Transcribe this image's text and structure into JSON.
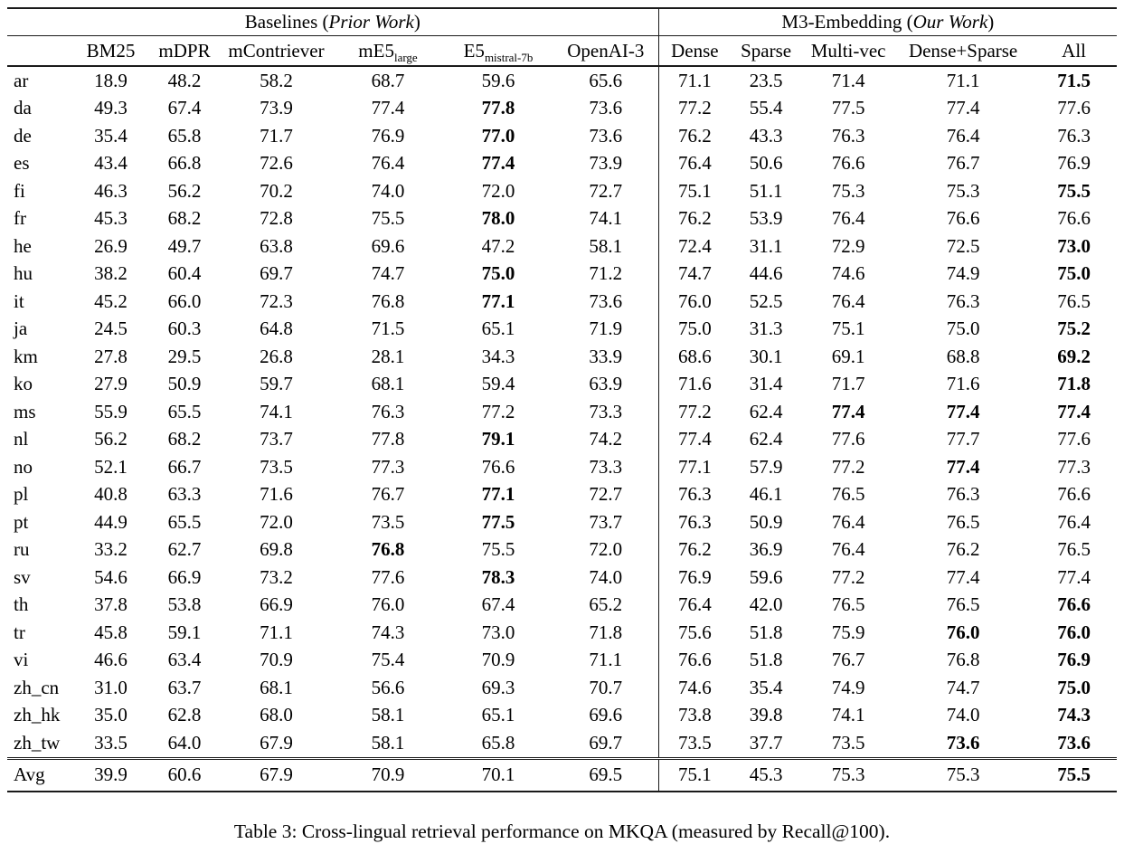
{
  "table": {
    "groups": [
      {
        "prefix": "Baselines (",
        "emph": "Prior Work",
        "suffix": ")"
      },
      {
        "prefix": "M3-Embedding (",
        "emph": "Our Work",
        "suffix": ")"
      }
    ],
    "columns": [
      {
        "text": "BM25"
      },
      {
        "text": "mDPR"
      },
      {
        "text": "mContriever"
      },
      {
        "text": "mE5",
        "sub": "large"
      },
      {
        "text": "E5",
        "sub": "mistral-7b"
      },
      {
        "text": "OpenAI-3"
      },
      {
        "text": "Dense"
      },
      {
        "text": "Sparse"
      },
      {
        "text": "Multi-vec"
      },
      {
        "text": "Dense+Sparse"
      },
      {
        "text": "All"
      }
    ],
    "rows": [
      {
        "lang": "ar",
        "values": [
          "18.9",
          "48.2",
          "58.2",
          "68.7",
          "59.6",
          "65.6",
          "71.1",
          "23.5",
          "71.4",
          "71.1",
          "71.5"
        ],
        "bold": [
          10
        ]
      },
      {
        "lang": "da",
        "values": [
          "49.3",
          "67.4",
          "73.9",
          "77.4",
          "77.8",
          "73.6",
          "77.2",
          "55.4",
          "77.5",
          "77.4",
          "77.6"
        ],
        "bold": [
          4
        ]
      },
      {
        "lang": "de",
        "values": [
          "35.4",
          "65.8",
          "71.7",
          "76.9",
          "77.0",
          "73.6",
          "76.2",
          "43.3",
          "76.3",
          "76.4",
          "76.3"
        ],
        "bold": [
          4
        ]
      },
      {
        "lang": "es",
        "values": [
          "43.4",
          "66.8",
          "72.6",
          "76.4",
          "77.4",
          "73.9",
          "76.4",
          "50.6",
          "76.6",
          "76.7",
          "76.9"
        ],
        "bold": [
          4
        ]
      },
      {
        "lang": "fi",
        "values": [
          "46.3",
          "56.2",
          "70.2",
          "74.0",
          "72.0",
          "72.7",
          "75.1",
          "51.1",
          "75.3",
          "75.3",
          "75.5"
        ],
        "bold": [
          10
        ]
      },
      {
        "lang": "fr",
        "values": [
          "45.3",
          "68.2",
          "72.8",
          "75.5",
          "78.0",
          "74.1",
          "76.2",
          "53.9",
          "76.4",
          "76.6",
          "76.6"
        ],
        "bold": [
          4
        ]
      },
      {
        "lang": "he",
        "values": [
          "26.9",
          "49.7",
          "63.8",
          "69.6",
          "47.2",
          "58.1",
          "72.4",
          "31.1",
          "72.9",
          "72.5",
          "73.0"
        ],
        "bold": [
          10
        ]
      },
      {
        "lang": "hu",
        "values": [
          "38.2",
          "60.4",
          "69.7",
          "74.7",
          "75.0",
          "71.2",
          "74.7",
          "44.6",
          "74.6",
          "74.9",
          "75.0"
        ],
        "bold": [
          4,
          10
        ]
      },
      {
        "lang": "it",
        "values": [
          "45.2",
          "66.0",
          "72.3",
          "76.8",
          "77.1",
          "73.6",
          "76.0",
          "52.5",
          "76.4",
          "76.3",
          "76.5"
        ],
        "bold": [
          4
        ]
      },
      {
        "lang": "ja",
        "values": [
          "24.5",
          "60.3",
          "64.8",
          "71.5",
          "65.1",
          "71.9",
          "75.0",
          "31.3",
          "75.1",
          "75.0",
          "75.2"
        ],
        "bold": [
          10
        ]
      },
      {
        "lang": "km",
        "values": [
          "27.8",
          "29.5",
          "26.8",
          "28.1",
          "34.3",
          "33.9",
          "68.6",
          "30.1",
          "69.1",
          "68.8",
          "69.2"
        ],
        "bold": [
          10
        ]
      },
      {
        "lang": "ko",
        "values": [
          "27.9",
          "50.9",
          "59.7",
          "68.1",
          "59.4",
          "63.9",
          "71.6",
          "31.4",
          "71.7",
          "71.6",
          "71.8"
        ],
        "bold": [
          10
        ]
      },
      {
        "lang": "ms",
        "values": [
          "55.9",
          "65.5",
          "74.1",
          "76.3",
          "77.2",
          "73.3",
          "77.2",
          "62.4",
          "77.4",
          "77.4",
          "77.4"
        ],
        "bold": [
          8,
          9,
          10
        ]
      },
      {
        "lang": "nl",
        "values": [
          "56.2",
          "68.2",
          "73.7",
          "77.8",
          "79.1",
          "74.2",
          "77.4",
          "62.4",
          "77.6",
          "77.7",
          "77.6"
        ],
        "bold": [
          4
        ]
      },
      {
        "lang": "no",
        "values": [
          "52.1",
          "66.7",
          "73.5",
          "77.3",
          "76.6",
          "73.3",
          "77.1",
          "57.9",
          "77.2",
          "77.4",
          "77.3"
        ],
        "bold": [
          9
        ]
      },
      {
        "lang": "pl",
        "values": [
          "40.8",
          "63.3",
          "71.6",
          "76.7",
          "77.1",
          "72.7",
          "76.3",
          "46.1",
          "76.5",
          "76.3",
          "76.6"
        ],
        "bold": [
          4
        ]
      },
      {
        "lang": "pt",
        "values": [
          "44.9",
          "65.5",
          "72.0",
          "73.5",
          "77.5",
          "73.7",
          "76.3",
          "50.9",
          "76.4",
          "76.5",
          "76.4"
        ],
        "bold": [
          4
        ]
      },
      {
        "lang": "ru",
        "values": [
          "33.2",
          "62.7",
          "69.8",
          "76.8",
          "75.5",
          "72.0",
          "76.2",
          "36.9",
          "76.4",
          "76.2",
          "76.5"
        ],
        "bold": [
          3
        ]
      },
      {
        "lang": "sv",
        "values": [
          "54.6",
          "66.9",
          "73.2",
          "77.6",
          "78.3",
          "74.0",
          "76.9",
          "59.6",
          "77.2",
          "77.4",
          "77.4"
        ],
        "bold": [
          4
        ]
      },
      {
        "lang": "th",
        "values": [
          "37.8",
          "53.8",
          "66.9",
          "76.0",
          "67.4",
          "65.2",
          "76.4",
          "42.0",
          "76.5",
          "76.5",
          "76.6"
        ],
        "bold": [
          10
        ]
      },
      {
        "lang": "tr",
        "values": [
          "45.8",
          "59.1",
          "71.1",
          "74.3",
          "73.0",
          "71.8",
          "75.6",
          "51.8",
          "75.9",
          "76.0",
          "76.0"
        ],
        "bold": [
          9,
          10
        ]
      },
      {
        "lang": "vi",
        "values": [
          "46.6",
          "63.4",
          "70.9",
          "75.4",
          "70.9",
          "71.1",
          "76.6",
          "51.8",
          "76.7",
          "76.8",
          "76.9"
        ],
        "bold": [
          10
        ]
      },
      {
        "lang": "zh_cn",
        "values": [
          "31.0",
          "63.7",
          "68.1",
          "56.6",
          "69.3",
          "70.7",
          "74.6",
          "35.4",
          "74.9",
          "74.7",
          "75.0"
        ],
        "bold": [
          10
        ]
      },
      {
        "lang": "zh_hk",
        "values": [
          "35.0",
          "62.8",
          "68.0",
          "58.1",
          "65.1",
          "69.6",
          "73.8",
          "39.8",
          "74.1",
          "74.0",
          "74.3"
        ],
        "bold": [
          10
        ]
      },
      {
        "lang": "zh_tw",
        "values": [
          "33.5",
          "64.0",
          "67.9",
          "58.1",
          "65.8",
          "69.7",
          "73.5",
          "37.7",
          "73.5",
          "73.6",
          "73.6"
        ],
        "bold": [
          9,
          10
        ]
      }
    ],
    "avg_row": {
      "lang": "Avg",
      "values": [
        "39.9",
        "60.6",
        "67.9",
        "70.9",
        "70.1",
        "69.5",
        "75.1",
        "45.3",
        "75.3",
        "75.3",
        "75.5"
      ],
      "bold": [
        10
      ]
    }
  },
  "caption": "Table 3: Cross-lingual retrieval performance on MKQA (measured by Recall@100)."
}
